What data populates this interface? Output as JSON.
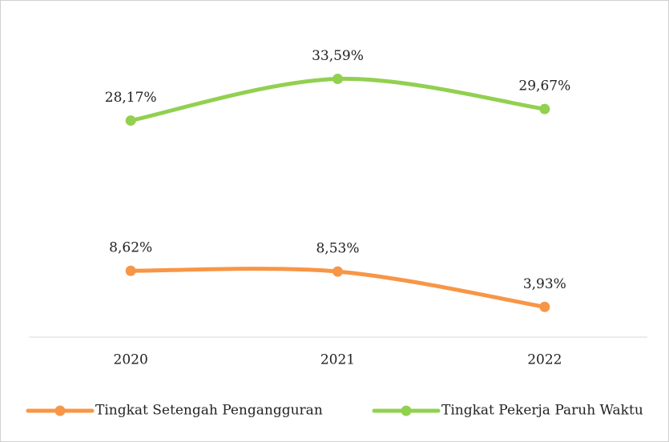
{
  "chart_data": {
    "type": "line",
    "categories": [
      "2020",
      "2021",
      "2022"
    ],
    "series": [
      {
        "name": "Tingkat Setengah Pengangguran",
        "color": "#f79646",
        "values": [
          8.62,
          8.53,
          3.93
        ],
        "value_labels": [
          "8,62%",
          "8,53%",
          "3,93%"
        ]
      },
      {
        "name": "Tingkat Pekerja Paruh Waktu",
        "color": "#92d050",
        "values": [
          28.17,
          33.59,
          29.67
        ],
        "value_labels": [
          "28,17%",
          "33,59%",
          "29,67%"
        ]
      }
    ],
    "ylim": [
      0,
      40
    ],
    "legend": "bottom"
  }
}
